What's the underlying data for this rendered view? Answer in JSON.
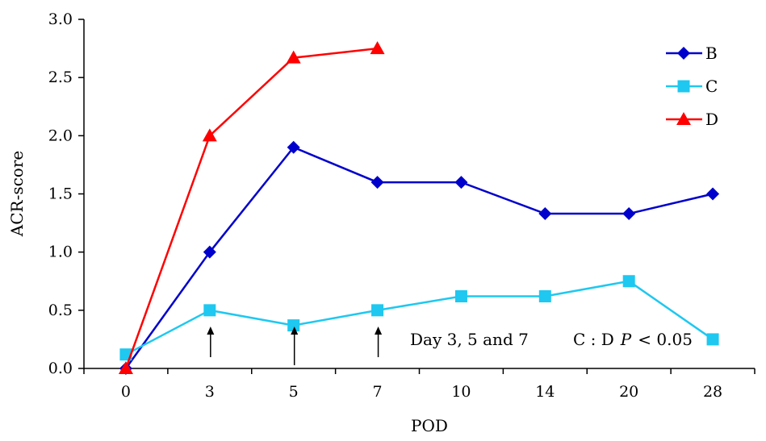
{
  "chart_data": {
    "type": "line",
    "xlabel": "POD",
    "ylabel": "ACR-score",
    "categories": [
      "0",
      "3",
      "5",
      "7",
      "10",
      "14",
      "20",
      "28"
    ],
    "ylim": [
      0,
      3.0
    ],
    "yticks": [
      "0.0",
      "0.5",
      "1.0",
      "1.5",
      "2.0",
      "2.5",
      "3.0"
    ],
    "grid": false,
    "legend_position": "top-right",
    "series": [
      {
        "name": "B",
        "color": "#0000cc",
        "marker": "diamond",
        "values": [
          0,
          1.0,
          1.9,
          1.6,
          1.6,
          1.33,
          1.33,
          1.5
        ]
      },
      {
        "name": "C",
        "color": "#1ec8f0",
        "marker": "square",
        "values": [
          0.12,
          0.5,
          0.37,
          0.5,
          0.62,
          0.62,
          0.75,
          0.25
        ]
      },
      {
        "name": "D",
        "color": "#ff0000",
        "marker": "triangle",
        "values": [
          0,
          2.0,
          2.67,
          2.75,
          null,
          null,
          null,
          null
        ]
      }
    ],
    "annotations": {
      "days_text": "Day 3, 5 and 7",
      "sig_prefix": "C : D",
      "sig_p": "P",
      "sig_value": "< 0.05",
      "arrow_categories": [
        "3",
        "5",
        "7"
      ]
    }
  }
}
